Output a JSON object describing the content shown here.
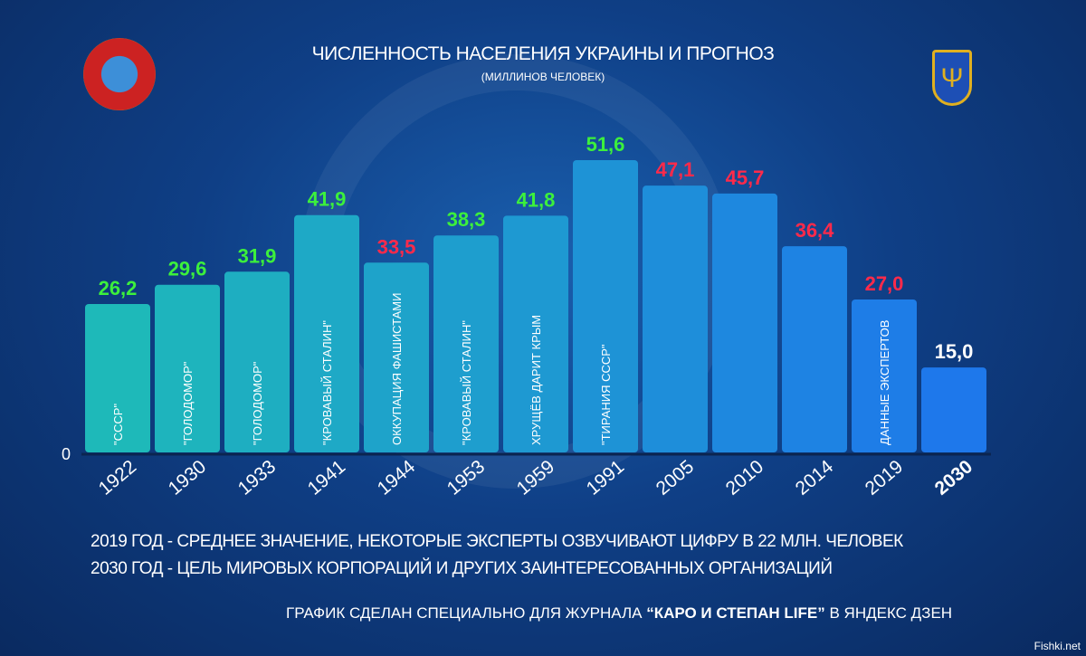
{
  "chart_data": {
    "type": "bar",
    "title": "ЧИСЛЕННОСТЬ НАСЕЛЕНИЯ УКРАИНЫ И ПРОГНОЗ",
    "subtitle": "(МИЛЛИНОВ ЧЕЛОВЕК)",
    "ylabel": "",
    "xlabel": "",
    "ylim": [
      0,
      55
    ],
    "y_tick": "0",
    "categories": [
      "1922",
      "1930",
      "1933",
      "1941",
      "1944",
      "1953",
      "1959",
      "1991",
      "2005",
      "2010",
      "2014",
      "2019",
      "2030"
    ],
    "values": [
      26.2,
      29.6,
      31.9,
      41.9,
      33.5,
      38.3,
      41.8,
      51.6,
      47.1,
      45.7,
      36.4,
      27.0,
      15.0
    ],
    "value_labels": [
      "26,2",
      "29,6",
      "31,9",
      "41,9",
      "33,5",
      "38,3",
      "41,8",
      "51,6",
      "47,1",
      "45,7",
      "36,4",
      "27,0",
      "15,0"
    ],
    "bar_labels": [
      "\"СССР\"",
      "\"ГОЛОДОМОР\"",
      "\"ГОЛОДОМОР\"",
      "\"КРОВАВЫЙ СТАЛИН\"",
      "ОККУПАЦИЯ ФАШИСТАМИ",
      "\"КРОВАВЫЙ СТАЛИН\"",
      "ХРУЩЁВ ДАРИТ КРЫМ",
      "\"ТИРАНИЯ СССР\"",
      "",
      "",
      "",
      "ДАННЫЕ ЭКСПЕРТОВ",
      ""
    ],
    "value_colors": [
      "#3cf03c",
      "#3cf03c",
      "#3cf03c",
      "#3cf03c",
      "#ff2a4a",
      "#3cf03c",
      "#3cf03c",
      "#3cf03c",
      "#ff2a4a",
      "#ff2a4a",
      "#ff2a4a",
      "#ff2a4a",
      "#ffffff"
    ]
  },
  "notes": [
    "2019 ГОД - СРЕДНЕЕ ЗНАЧЕНИЕ, НЕКОТОРЫЕ ЭКСПЕРТЫ ОЗВУЧИВАЮТ ЦИФРУ В 22 МЛН. ЧЕЛОВЕК",
    "2030 ГОД - ЦЕЛЬ МИРОВЫХ КОРПОРАЦИЙ И ДРУГИХ ЗАИНТЕРЕСОВАННЫХ ОРГАНИЗАЦИЙ"
  ],
  "credit": {
    "pre": "ГРАФИК СДЕЛАН СПЕЦИАЛЬНО ДЛЯ ЖУРНАЛА",
    "brand": "“КАРО И СТЕПАН LIFE”",
    "post": "В ЯНДЕКС ДЗЕН"
  },
  "watermark": "КАРО И СТЕПАН LIFE",
  "site": "Fishki.net"
}
